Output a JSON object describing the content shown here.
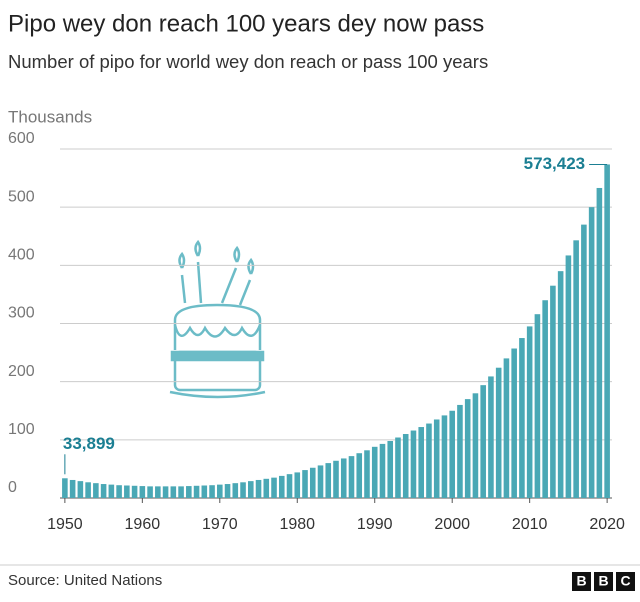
{
  "chart_data": {
    "type": "bar",
    "title": "Pipo wey don reach 100 years dey now pass",
    "subtitle": "Number of pipo for world wey don reach or pass 100 years",
    "y_axis_label": "Thousands",
    "source": "Source: United Nations",
    "logo": [
      "B",
      "B",
      "C"
    ],
    "color": "#4aa8b5",
    "label_color": "#1b7f93",
    "x": [
      1950,
      1951,
      1952,
      1953,
      1954,
      1955,
      1956,
      1957,
      1958,
      1959,
      1960,
      1961,
      1962,
      1963,
      1964,
      1965,
      1966,
      1967,
      1968,
      1969,
      1970,
      1971,
      1972,
      1973,
      1974,
      1975,
      1976,
      1977,
      1978,
      1979,
      1980,
      1981,
      1982,
      1983,
      1984,
      1985,
      1986,
      1987,
      1988,
      1989,
      1990,
      1991,
      1992,
      1993,
      1994,
      1995,
      1996,
      1997,
      1998,
      1999,
      2000,
      2001,
      2002,
      2003,
      2004,
      2005,
      2006,
      2007,
      2008,
      2009,
      2010,
      2011,
      2012,
      2013,
      2014,
      2015,
      2016,
      2017,
      2018,
      2019,
      2020
    ],
    "values": [
      33.899,
      31,
      29,
      27,
      25.5,
      24,
      23,
      22,
      21.5,
      21,
      20.5,
      20,
      20,
      20,
      20,
      20,
      20.5,
      21,
      21.5,
      22,
      23,
      24,
      25.5,
      27,
      29,
      31,
      33,
      35,
      38,
      41,
      44,
      48,
      52,
      56,
      60,
      64,
      68,
      72,
      77,
      82,
      88,
      93,
      98,
      104,
      110,
      116,
      122,
      128,
      135,
      142,
      150,
      160,
      170,
      180,
      194,
      209,
      224,
      240,
      257,
      275,
      295,
      316,
      340,
      365,
      390,
      417,
      443,
      470,
      500,
      533,
      573.423
    ],
    "value_labels": [
      "33,899",
      null,
      null,
      null,
      null,
      null,
      null,
      null,
      null,
      null,
      null,
      null,
      null,
      null,
      null,
      null,
      null,
      null,
      null,
      null,
      null,
      null,
      null,
      null,
      null,
      null,
      null,
      null,
      null,
      null,
      null,
      null,
      null,
      null,
      null,
      null,
      null,
      null,
      null,
      null,
      null,
      null,
      null,
      null,
      null,
      null,
      null,
      null,
      null,
      null,
      null,
      null,
      null,
      null,
      null,
      null,
      null,
      null,
      null,
      null,
      null,
      null,
      null,
      null,
      null,
      null,
      null,
      null,
      null,
      null,
      "573,423"
    ],
    "xlim": [
      1949.5,
      2020.5
    ],
    "xticks": [
      1950,
      1960,
      1970,
      1980,
      1990,
      2000,
      2010,
      2020
    ],
    "ylim": [
      0,
      600
    ],
    "yticks": [
      0,
      100,
      200,
      300,
      400,
      500,
      600
    ],
    "grid": true
  }
}
